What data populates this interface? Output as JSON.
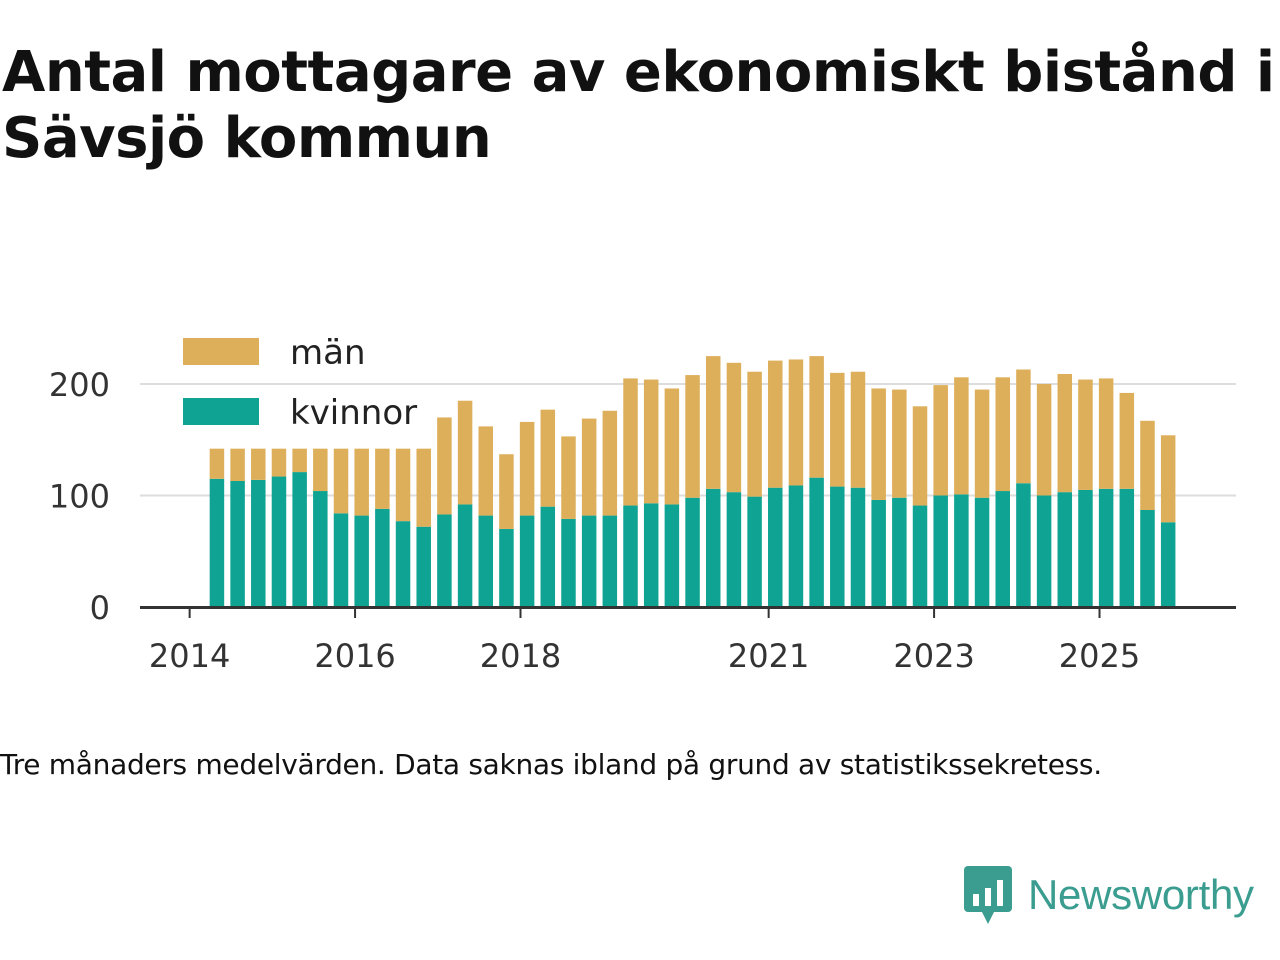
{
  "title": "Antal mottagare av ekonomiskt bistånd i Sävsjö kommun",
  "caption": "Tre månaders medelvärden. Data saknas ibland på grund av statistikssekretess.",
  "brand": {
    "name": "Newsworthy"
  },
  "colors": {
    "man": "#deaf5a",
    "kvinnor": "#0fa394",
    "grid": "#dddddd",
    "axis": "#333333",
    "brand": "#3a9d8f"
  },
  "chart_data": {
    "type": "bar",
    "stacked": true,
    "title": "Antal mottagare av ekonomiskt bistånd i Sävsjö kommun",
    "xlabel": "",
    "ylabel": "",
    "ylim": [
      0,
      250
    ],
    "yticks": [
      0,
      100,
      200
    ],
    "xtick_labels": [
      "2014",
      "2016",
      "2018",
      "2021",
      "2023",
      "2025"
    ],
    "xtick_positions": [
      2014,
      2016,
      2018,
      2021,
      2023,
      2025
    ],
    "xrange": [
      2013.4,
      2026.65
    ],
    "grid": true,
    "legend_position": "top-left",
    "x": [
      2014.33,
      2014.58,
      2014.83,
      2015.08,
      2015.33,
      2015.58,
      2015.83,
      2016.08,
      2016.33,
      2016.58,
      2016.83,
      2017.08,
      2017.33,
      2017.58,
      2017.83,
      2018.08,
      2018.33,
      2018.58,
      2018.83,
      2019.08,
      2019.33,
      2019.58,
      2019.83,
      2020.08,
      2020.33,
      2020.58,
      2020.83,
      2021.08,
      2021.33,
      2021.58,
      2021.83,
      2022.08,
      2022.33,
      2022.58,
      2022.83,
      2023.08,
      2023.33,
      2023.58,
      2023.83,
      2024.08,
      2024.33,
      2024.58,
      2024.83,
      2025.08,
      2025.33,
      2025.58,
      2025.83
    ],
    "series": [
      {
        "name": "kvinnor",
        "values": [
          115,
          113,
          114,
          117,
          121,
          104,
          84,
          82,
          88,
          77,
          72,
          83,
          92,
          82,
          70,
          82,
          90,
          79,
          82,
          82,
          91,
          93,
          92,
          98,
          106,
          103,
          99,
          107,
          109,
          116,
          108,
          107,
          96,
          98,
          91,
          100,
          101,
          98,
          104,
          111,
          100,
          103,
          105,
          106,
          106,
          87,
          76
        ]
      },
      {
        "name": "män",
        "values": [
          27,
          29,
          28,
          25,
          21,
          38,
          58,
          60,
          54,
          65,
          70,
          87,
          93,
          80,
          67,
          84,
          87,
          74,
          87,
          94,
          114,
          111,
          104,
          110,
          119,
          116,
          112,
          114,
          113,
          109,
          102,
          104,
          100,
          97,
          89,
          99,
          105,
          97,
          102,
          102,
          100,
          106,
          99,
          99,
          86,
          80,
          78
        ]
      }
    ],
    "legend": [
      "män",
      "kvinnor"
    ]
  }
}
